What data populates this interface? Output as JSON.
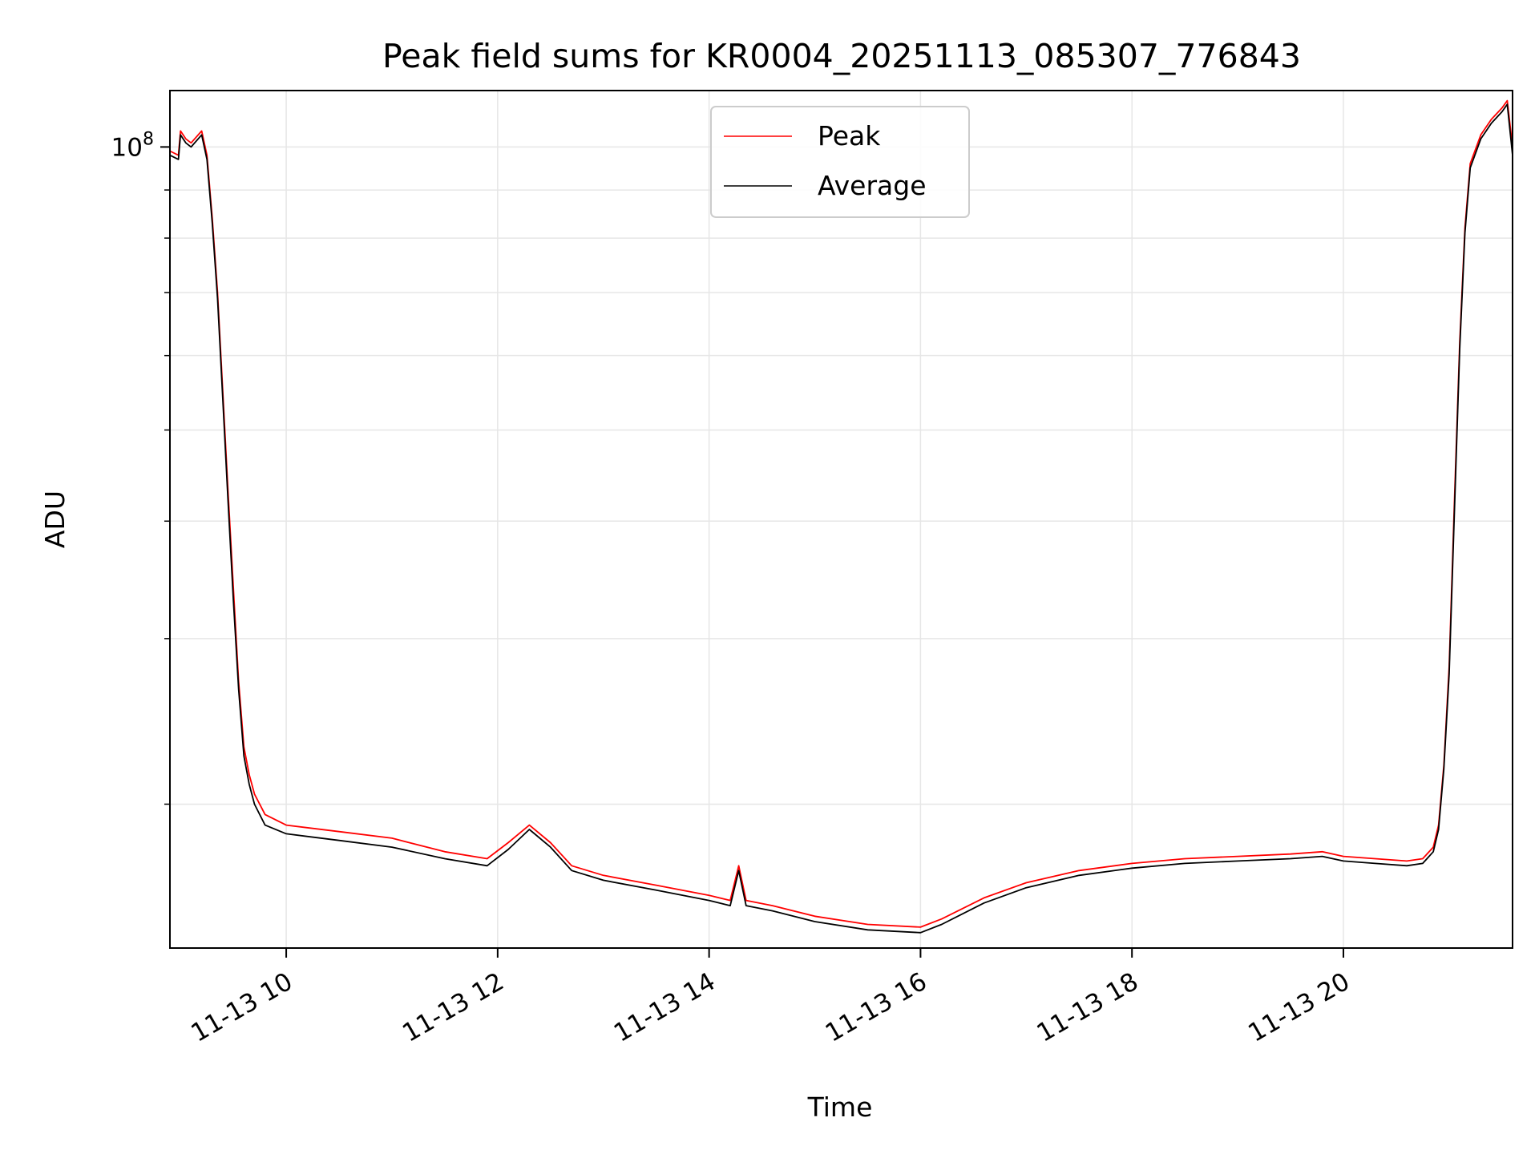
{
  "chart_data": {
    "type": "line",
    "title": "Peak field sums for KR0004_20251113_085307_776843",
    "xlabel": "Time",
    "ylabel": "ADU",
    "xlim": [
      8.9,
      21.6
    ],
    "ylim_log10": [
      7.148,
      8.06
    ],
    "y_scale": "log",
    "y_major_tick": {
      "value": 100000000,
      "label_base": "10",
      "label_exp": "8"
    },
    "y_minor_ticks": [
      20000000,
      30000000,
      40000000,
      50000000,
      60000000,
      70000000,
      80000000,
      90000000
    ],
    "x_ticks": [
      {
        "value": 10,
        "label": "11-13 10"
      },
      {
        "value": 12,
        "label": "11-13 12"
      },
      {
        "value": 14,
        "label": "11-13 14"
      },
      {
        "value": 16,
        "label": "11-13 16"
      },
      {
        "value": 18,
        "label": "11-13 18"
      },
      {
        "value": 20,
        "label": "11-13 20"
      }
    ],
    "grid": true,
    "legend_position": "upper-center",
    "series": [
      {
        "name": "Peak",
        "color": "#ff0000",
        "x": [
          8.9,
          8.98,
          9.0,
          9.05,
          9.1,
          9.2,
          9.25,
          9.3,
          9.35,
          9.4,
          9.45,
          9.5,
          9.55,
          9.6,
          9.65,
          9.7,
          9.8,
          10.0,
          10.5,
          11.0,
          11.5,
          11.9,
          12.1,
          12.3,
          12.5,
          12.7,
          13.0,
          13.5,
          14.0,
          14.2,
          14.28,
          14.35,
          14.6,
          15.0,
          15.5,
          16.0,
          16.2,
          16.6,
          17.0,
          17.5,
          18.0,
          18.5,
          19.0,
          19.5,
          19.8,
          20.0,
          20.3,
          20.6,
          20.75,
          20.85,
          20.9,
          20.95,
          21.0,
          21.05,
          21.1,
          21.15,
          21.2,
          21.3,
          21.4,
          21.5,
          21.55,
          21.6
        ],
        "values": [
          99000000,
          98000000,
          104000000,
          102000000,
          101000000,
          104000000,
          98000000,
          84000000,
          70000000,
          55000000,
          43000000,
          34000000,
          27000000,
          23000000,
          21500000,
          20500000,
          19500000,
          19000000,
          18700000,
          18400000,
          17800000,
          17500000,
          18200000,
          19000000,
          18200000,
          17200000,
          16800000,
          16400000,
          16000000,
          15800000,
          17200000,
          15800000,
          15600000,
          15200000,
          14900000,
          14800000,
          15100000,
          15900000,
          16500000,
          17000000,
          17300000,
          17500000,
          17600000,
          17700000,
          17800000,
          17600000,
          17500000,
          17400000,
          17500000,
          18000000,
          19000000,
          22000000,
          28000000,
          42000000,
          62000000,
          82000000,
          96000000,
          103000000,
          107000000,
          110000000,
          112000000,
          100000000
        ]
      },
      {
        "name": "Average",
        "color": "#000000",
        "x": [
          8.9,
          8.98,
          9.0,
          9.05,
          9.1,
          9.2,
          9.25,
          9.3,
          9.35,
          9.4,
          9.45,
          9.5,
          9.55,
          9.6,
          9.65,
          9.7,
          9.8,
          10.0,
          10.5,
          11.0,
          11.5,
          11.9,
          12.1,
          12.3,
          12.5,
          12.7,
          13.0,
          13.5,
          14.0,
          14.2,
          14.28,
          14.35,
          14.6,
          15.0,
          15.5,
          16.0,
          16.2,
          16.6,
          17.0,
          17.5,
          18.0,
          18.5,
          19.0,
          19.5,
          19.8,
          20.0,
          20.3,
          20.6,
          20.75,
          20.85,
          20.9,
          20.95,
          21.0,
          21.05,
          21.1,
          21.15,
          21.2,
          21.3,
          21.4,
          21.5,
          21.55,
          21.6
        ],
        "values": [
          98000000,
          97000000,
          103000000,
          101000000,
          100000000,
          103000000,
          97000000,
          83000000,
          69000000,
          54000000,
          42000000,
          33000000,
          26500000,
          22500000,
          21000000,
          20000000,
          19000000,
          18600000,
          18300000,
          18000000,
          17500000,
          17200000,
          17900000,
          18800000,
          18000000,
          17000000,
          16600000,
          16200000,
          15800000,
          15600000,
          17000000,
          15600000,
          15400000,
          15000000,
          14700000,
          14600000,
          14900000,
          15700000,
          16300000,
          16800000,
          17100000,
          17300000,
          17400000,
          17500000,
          17600000,
          17400000,
          17300000,
          17200000,
          17300000,
          17800000,
          18800000,
          21800000,
          27500000,
          41000000,
          61000000,
          81000000,
          95000000,
          102000000,
          106000000,
          109000000,
          111000000,
          98000000
        ]
      }
    ]
  }
}
